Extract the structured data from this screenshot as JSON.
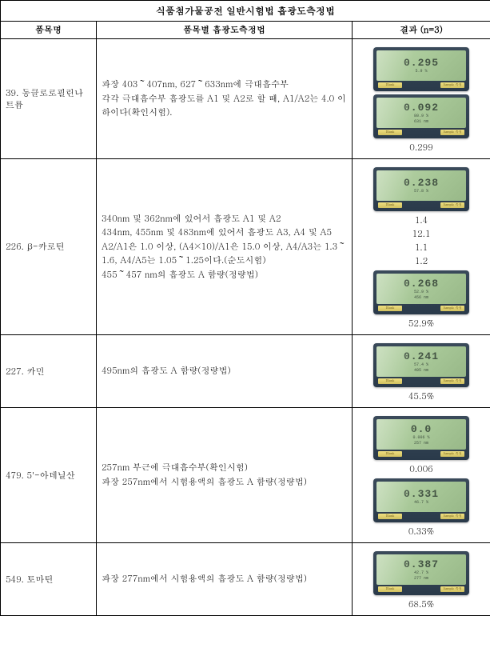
{
  "title": "식품첨가물공전 일반시험법 흡광도측정법",
  "headers": {
    "name": "품목명",
    "method": "품목별 흡광도측정법",
    "result": "결과 (n=3)"
  },
  "rows": [
    {
      "name": "39. 동클로로필린나트륨",
      "method": "파장 403～407nm, 627～633nm에 극대흡수부\n각각 극대흡수부 흡광도를 A1 및 A2로 할 때, A1/A2는 4.0 이하이다(확인시험).",
      "devices": [
        {
          "main": "0.295",
          "sub1": "5.9 %",
          "sub2": ""
        },
        {
          "main": "0.092",
          "sub1": "80.9 %",
          "sub2": "631 nm"
        }
      ],
      "values": [
        "0.299"
      ]
    },
    {
      "name": "226. β-카로틴",
      "method": "340nm 및 362nm에 있어서 흡광도 A1 및 A2\n434nm, 455nm 및 483nm에 있어서 흡광도 A3, A4 및 A5\nA2/A1은 1.0 이상, (A4×10)/A1은 15.0 이상, A4/A3는 1.3～1.6, A4/A5는 1.05～1.25이다.(순도시험)\n455～457 nm의 흡광도 A 함량(정량법)",
      "devices": [
        {
          "main": "0.238",
          "sub1": "57.8 %",
          "sub2": ""
        },
        {
          "main": "0.268",
          "sub1": "52.9 %",
          "sub2": "456 nm"
        }
      ],
      "values": [
        "1.4",
        "12.1",
        "1.1",
        "1.2",
        "52.9%"
      ]
    },
    {
      "name": "227. 카민",
      "method": "495nm의 흡광도 A 함량(정량법)",
      "devices": [
        {
          "main": "0.241",
          "sub1": "57.4 %",
          "sub2": "495 nm"
        }
      ],
      "values": [
        "45.5%"
      ]
    },
    {
      "name": "479. 5'-아데닐산",
      "method": "257nm 부근에 극대흡수부(확인시험)\n파장 257nm에서 시험용액의 흡광도 A 함량(정량법)",
      "devices": [
        {
          "main": "0.0",
          "sub1": "0.006 %",
          "sub2": "257 nm"
        },
        {
          "main": "0.331",
          "sub1": "46.7 %",
          "sub2": ""
        }
      ],
      "values": [
        "0.006",
        "0.33%"
      ]
    },
    {
      "name": "549. 토마틴",
      "method": "파장 277nm에서 시험용액의 흡광도 A 함량(정량법)",
      "devices": [
        {
          "main": "0.387",
          "sub1": "42.7 %",
          "sub2": "277 nm"
        }
      ],
      "values": [
        "68.5%"
      ]
    }
  ],
  "btn_labels": {
    "left": "Blank",
    "right": "Sample 측정"
  }
}
